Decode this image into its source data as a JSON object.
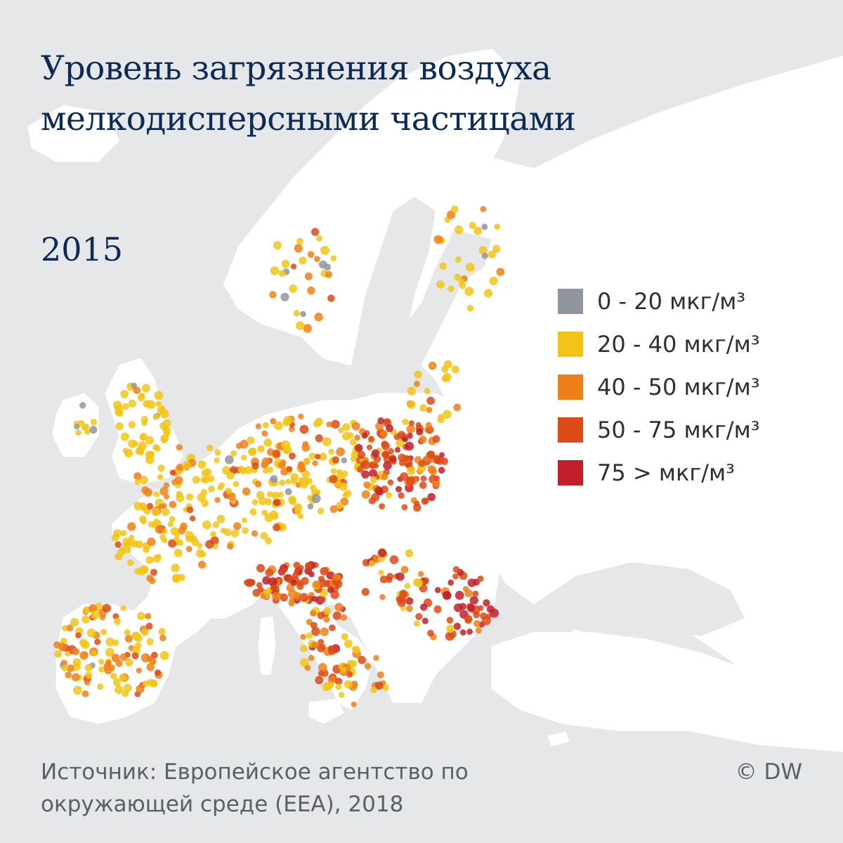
{
  "title": {
    "line1": "Уровень загрязнения воздуха",
    "line2": "мелкодисперсными частицами"
  },
  "year": "2015",
  "legend": [
    {
      "label": "0 - 20 мкг/м³",
      "color": "#8f969e"
    },
    {
      "label": "20 - 40 мкг/м³",
      "color": "#f2c417"
    },
    {
      "label": "40 - 50 мкг/м³",
      "color": "#ef8019"
    },
    {
      "label": "50 - 75 мкг/м³",
      "color": "#dd4a18"
    },
    {
      "label": "75 > мкг/м³",
      "color": "#c1202b"
    }
  ],
  "source": {
    "line1": "Источник: Европейское агентство по",
    "line2": "окружающей среде (EEA), 2018"
  },
  "copyright": "© DW",
  "colors": {
    "sea": "#e6e7e9",
    "land": "#ffffff",
    "title": "#0b2a55"
  }
}
